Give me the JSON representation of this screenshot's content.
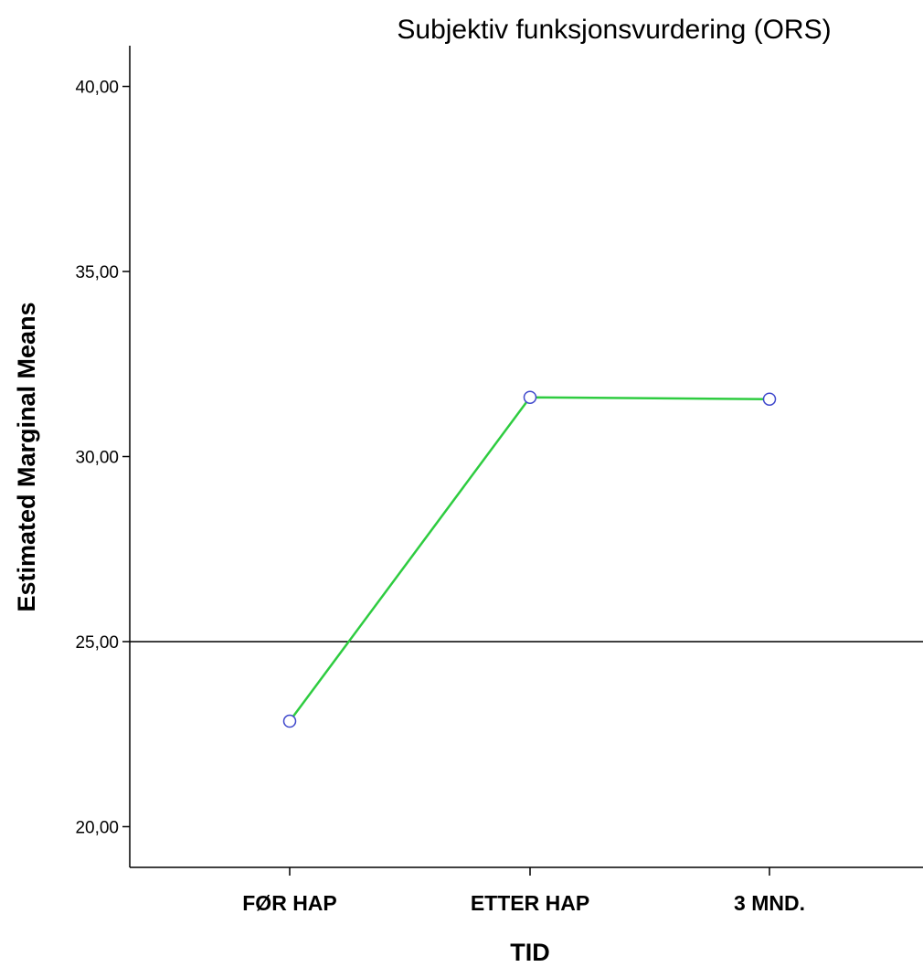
{
  "chart_data": {
    "type": "line",
    "title": "Subjektiv funksjonsvurdering (ORS)",
    "xlabel": "TID",
    "ylabel": "Estimated Marginal Means",
    "categories": [
      "FØR HAP",
      "ETTER HAP",
      "3 MND."
    ],
    "series": [
      {
        "values": [
          22.85,
          31.6,
          31.55
        ],
        "color": "#2ecc40",
        "marker": "open-circle",
        "marker_color": "#3f48cc"
      }
    ],
    "ylim": [
      18.9,
      41.1
    ],
    "yticks": [
      20,
      25,
      30,
      35,
      40
    ],
    "ytick_labels": [
      "20,00",
      "25,00",
      "30,00",
      "35,00",
      "40,00"
    ],
    "reference_line": {
      "y": 25,
      "color": "#000000"
    },
    "grid": false,
    "legend": "none"
  }
}
